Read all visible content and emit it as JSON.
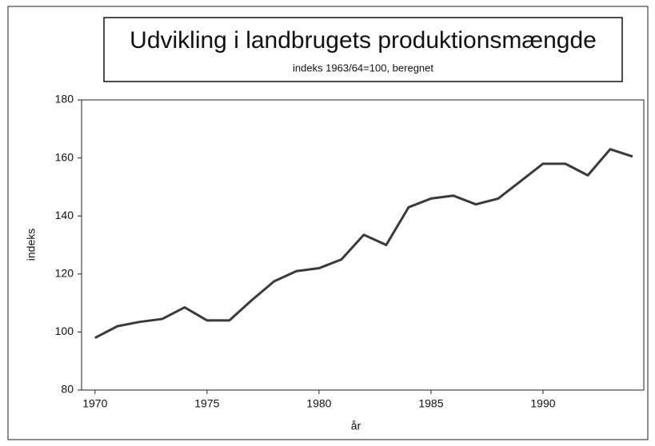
{
  "chart_data": {
    "type": "line",
    "title": "Udvikling i landbrugets produktionsmængde",
    "subtitle": "indeks 1963/64=100, beregnet",
    "xlabel": "år",
    "ylabel": "indeks",
    "x": [
      1970,
      1971,
      1972,
      1973,
      1974,
      1975,
      1976,
      1977,
      1978,
      1979,
      1980,
      1981,
      1982,
      1983,
      1984,
      1985,
      1986,
      1987,
      1988,
      1989,
      1990,
      1991,
      1992,
      1993,
      1994
    ],
    "series": [
      {
        "name": "indeks",
        "color": "#3a3a3a",
        "values": [
          98,
          102,
          103.5,
          104.5,
          108.5,
          104,
          104,
          111,
          117.5,
          121,
          122,
          125,
          133.5,
          130,
          143,
          146,
          147,
          144,
          146,
          152,
          158,
          158,
          154,
          163,
          160.5
        ]
      }
    ],
    "xlim": [
      1969.4,
      1994.5
    ],
    "xticks": [
      1970,
      1975,
      1980,
      1985,
      1990
    ],
    "ylim": [
      80,
      180
    ],
    "yticks": [
      80,
      100,
      120,
      140,
      160,
      180
    ],
    "grid": false,
    "legend": false
  }
}
